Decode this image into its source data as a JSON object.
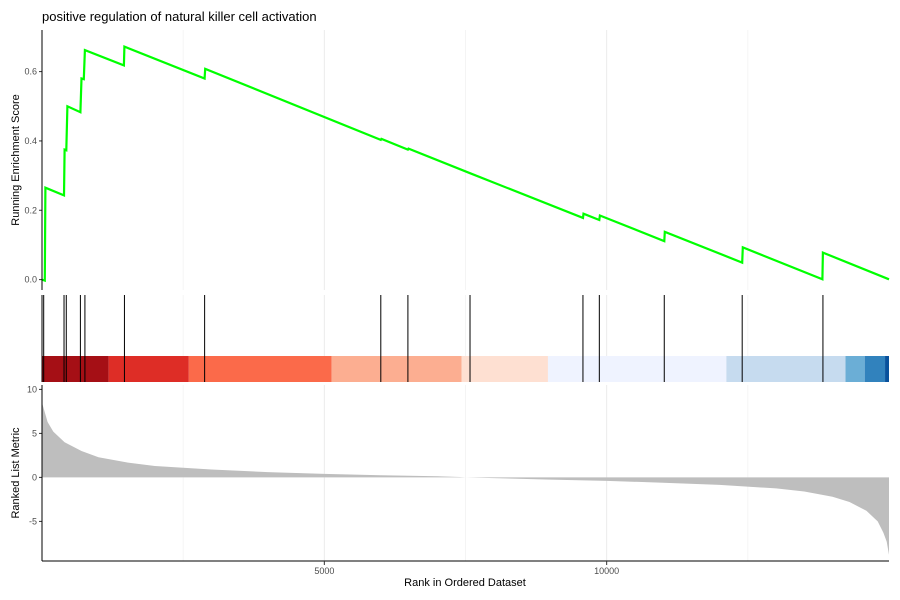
{
  "chart_data": {
    "type": "line",
    "title": "positive regulation of natural killer cell activation",
    "xlabel": "Rank in Ordered Dataset",
    "xlim": [
      0,
      15000
    ],
    "x_ticks": [
      5000,
      10000
    ],
    "grid": "vertical",
    "legend": "none",
    "enrichment_panel": {
      "ylabel": "Running Enrichment Score",
      "ylim": [
        -0.03,
        0.72
      ],
      "y_ticks": [
        "0.0",
        "0.2",
        "0.4",
        "0.6"
      ],
      "y_tick_values": [
        0.0,
        0.2,
        0.4,
        0.6
      ],
      "line_color": "#00ff00",
      "points": [
        [
          0,
          0.0
        ],
        [
          50,
          -0.003
        ],
        [
          60,
          0.265
        ],
        [
          390,
          0.243
        ],
        [
          400,
          0.375
        ],
        [
          430,
          0.373
        ],
        [
          450,
          0.5
        ],
        [
          680,
          0.483
        ],
        [
          700,
          0.58
        ],
        [
          740,
          0.578
        ],
        [
          760,
          0.662
        ],
        [
          1450,
          0.618
        ],
        [
          1460,
          0.672
        ],
        [
          2880,
          0.58
        ],
        [
          2890,
          0.608
        ],
        [
          6000,
          0.403
        ],
        [
          6010,
          0.406
        ],
        [
          6480,
          0.375
        ],
        [
          6490,
          0.378
        ],
        [
          7580,
          0.307
        ],
        [
          9580,
          0.178
        ],
        [
          9590,
          0.19
        ],
        [
          9870,
          0.172
        ],
        [
          9880,
          0.185
        ],
        [
          11020,
          0.111
        ],
        [
          11030,
          0.138
        ],
        [
          12400,
          0.049
        ],
        [
          12410,
          0.093
        ],
        [
          13820,
          0.001
        ],
        [
          13830,
          0.078
        ],
        [
          15000,
          0.001
        ]
      ]
    },
    "hit_ranks": [
      30,
      390,
      430,
      680,
      760,
      1460,
      2880,
      6000,
      6480,
      7580,
      9580,
      9870,
      11020,
      12400,
      13830
    ],
    "color_bands": [
      {
        "start": 0,
        "end": 1180,
        "color": "#a50f15"
      },
      {
        "start": 1180,
        "end": 2600,
        "color": "#de2d26"
      },
      {
        "start": 2600,
        "end": 5130,
        "color": "#fb6a4a"
      },
      {
        "start": 5130,
        "end": 7430,
        "color": "#fcae91"
      },
      {
        "start": 7430,
        "end": 8960,
        "color": "#fee0d2"
      },
      {
        "start": 8960,
        "end": 12120,
        "color": "#eff3ff"
      },
      {
        "start": 12120,
        "end": 14230,
        "color": "#c6dbef"
      },
      {
        "start": 14230,
        "end": 14570,
        "color": "#6baed6"
      },
      {
        "start": 14570,
        "end": 14930,
        "color": "#3182bd"
      },
      {
        "start": 14930,
        "end": 15000,
        "color": "#08519c"
      }
    ],
    "ranked_panel": {
      "ylabel": "Ranked List Metric",
      "ylim": [
        -9.5,
        10.5
      ],
      "y_ticks": [
        "10",
        "5",
        "0",
        "-5"
      ],
      "y_tick_values": [
        10,
        5,
        0,
        -5
      ],
      "fill_color": "#bebebe",
      "points": [
        [
          0,
          8.5
        ],
        [
          100,
          6.3
        ],
        [
          200,
          5.2
        ],
        [
          400,
          4.0
        ],
        [
          700,
          3.0
        ],
        [
          1000,
          2.3
        ],
        [
          1500,
          1.7
        ],
        [
          2000,
          1.3
        ],
        [
          3000,
          0.9
        ],
        [
          4000,
          0.6
        ],
        [
          5000,
          0.4
        ],
        [
          6000,
          0.25
        ],
        [
          7000,
          0.12
        ],
        [
          7400,
          0.05
        ],
        [
          7500,
          0.0
        ],
        [
          8000,
          -0.08
        ],
        [
          9000,
          -0.25
        ],
        [
          10000,
          -0.4
        ],
        [
          11000,
          -0.6
        ],
        [
          12000,
          -0.85
        ],
        [
          13000,
          -1.25
        ],
        [
          13500,
          -1.6
        ],
        [
          14000,
          -2.2
        ],
        [
          14300,
          -2.8
        ],
        [
          14600,
          -3.8
        ],
        [
          14800,
          -5.0
        ],
        [
          14900,
          -6.3
        ],
        [
          14960,
          -7.3
        ],
        [
          15000,
          -8.8
        ]
      ]
    }
  }
}
